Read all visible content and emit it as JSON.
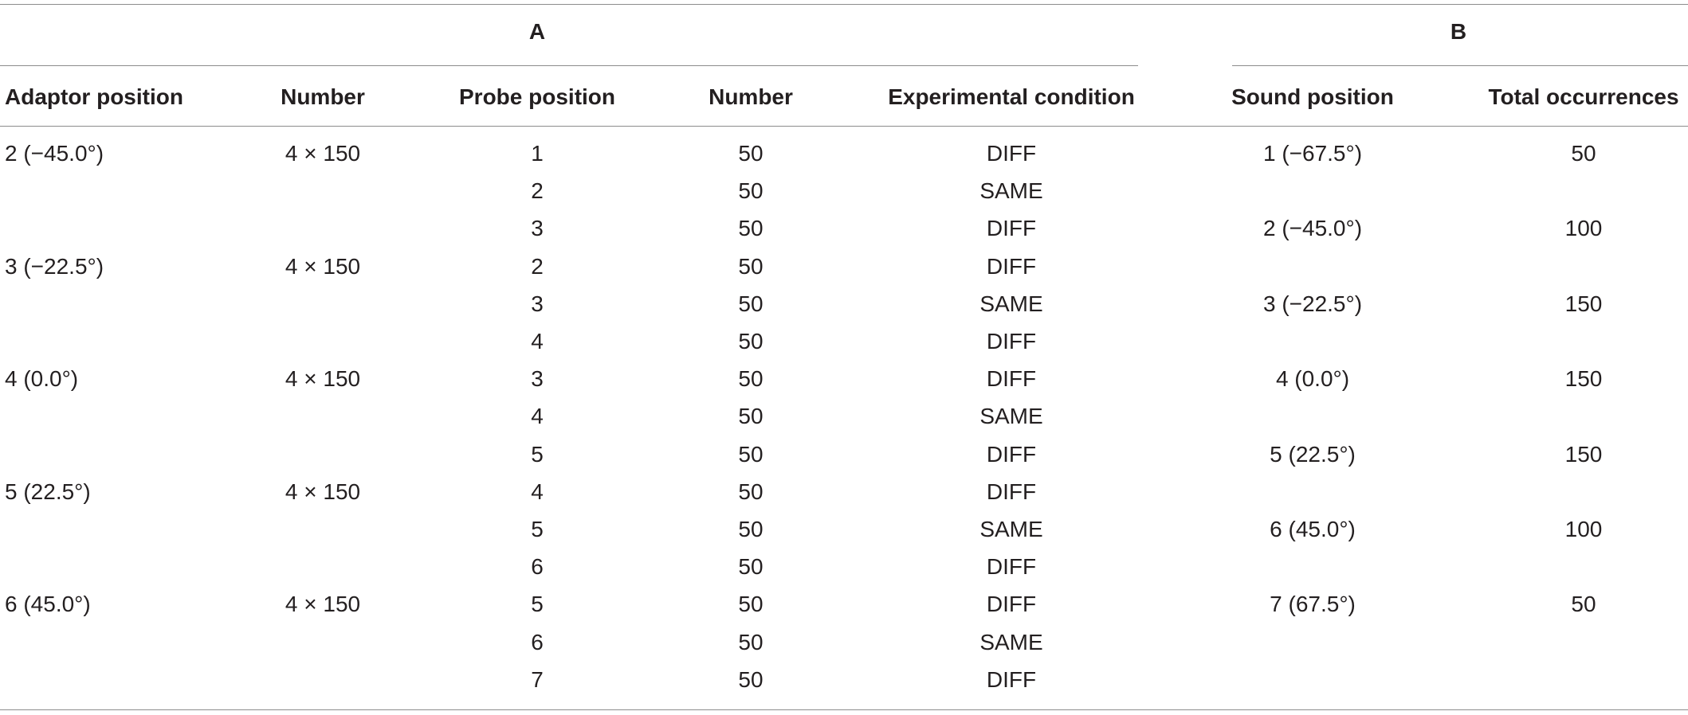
{
  "group_labels": {
    "a": "A",
    "b": "B"
  },
  "headers": {
    "adaptor_position": "Adaptor position",
    "number": "Number",
    "probe_position": "Probe position",
    "number_probe": "Number",
    "experimental_condition": "Experimental condition",
    "sound_position": "Sound position",
    "total_occurrences": "Total occurrences"
  },
  "table_a": [
    {
      "adaptor": "2 (−45.0°)",
      "number": "4 × 150",
      "probe": "1",
      "probe_number": "50",
      "condition": "DIFF"
    },
    {
      "adaptor": "",
      "number": "",
      "probe": "2",
      "probe_number": "50",
      "condition": "SAME"
    },
    {
      "adaptor": "",
      "number": "",
      "probe": "3",
      "probe_number": "50",
      "condition": "DIFF"
    },
    {
      "adaptor": "3 (−22.5°)",
      "number": "4 × 150",
      "probe": "2",
      "probe_number": "50",
      "condition": "DIFF"
    },
    {
      "adaptor": "",
      "number": "",
      "probe": "3",
      "probe_number": "50",
      "condition": "SAME"
    },
    {
      "adaptor": "",
      "number": "",
      "probe": "4",
      "probe_number": "50",
      "condition": "DIFF"
    },
    {
      "adaptor": "4 (0.0°)",
      "number": "4 × 150",
      "probe": "3",
      "probe_number": "50",
      "condition": "DIFF"
    },
    {
      "adaptor": "",
      "number": "",
      "probe": "4",
      "probe_number": "50",
      "condition": "SAME"
    },
    {
      "adaptor": "",
      "number": "",
      "probe": "5",
      "probe_number": "50",
      "condition": "DIFF"
    },
    {
      "adaptor": "5 (22.5°)",
      "number": "4 × 150",
      "probe": "4",
      "probe_number": "50",
      "condition": "DIFF"
    },
    {
      "adaptor": "",
      "number": "",
      "probe": "5",
      "probe_number": "50",
      "condition": "SAME"
    },
    {
      "adaptor": "",
      "number": "",
      "probe": "6",
      "probe_number": "50",
      "condition": "DIFF"
    },
    {
      "adaptor": "6 (45.0°)",
      "number": "4 × 150",
      "probe": "5",
      "probe_number": "50",
      "condition": "DIFF"
    },
    {
      "adaptor": "",
      "number": "",
      "probe": "6",
      "probe_number": "50",
      "condition": "SAME"
    },
    {
      "adaptor": "",
      "number": "",
      "probe": "7",
      "probe_number": "50",
      "condition": "DIFF"
    }
  ],
  "table_b": [
    {
      "sound": "1 (−67.5°)",
      "total": "50"
    },
    {
      "sound": "2 (−45.0°)",
      "total": "100"
    },
    {
      "sound": "3 (−22.5°)",
      "total": "150"
    },
    {
      "sound": "4 (0.0°)",
      "total": "150"
    },
    {
      "sound": "5 (22.5°)",
      "total": "150"
    },
    {
      "sound": "6 (45.0°)",
      "total": "100"
    },
    {
      "sound": "7 (67.5°)",
      "total": "50"
    }
  ]
}
